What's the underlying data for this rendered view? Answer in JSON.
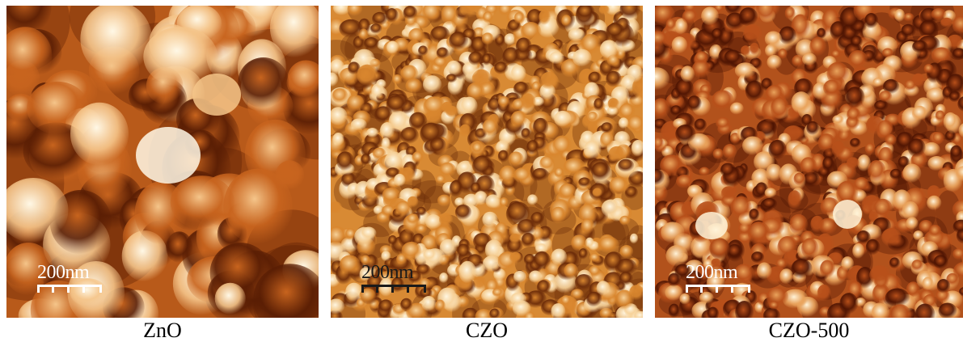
{
  "panels": [
    {
      "caption": "ZnO",
      "scale_label": "200nm",
      "scale_color": "#ffffff",
      "colors": {
        "dark": "#5a1e04",
        "mid": "#c8641e",
        "light": "#f5c58a",
        "bright": "#fff8e6"
      }
    },
    {
      "caption": "CZO",
      "scale_label": "200nm",
      "scale_color": "#1a1a1a",
      "colors": {
        "dark": "#6a2a08",
        "mid": "#d9862e",
        "light": "#f7d29a",
        "bright": "#fff6e0"
      }
    },
    {
      "caption": "CZO-500",
      "scale_label": "200nm",
      "scale_color": "#ffffff",
      "colors": {
        "dark": "#4e1402",
        "mid": "#b8501a",
        "light": "#e9a35c",
        "bright": "#fff3d8"
      }
    }
  ]
}
